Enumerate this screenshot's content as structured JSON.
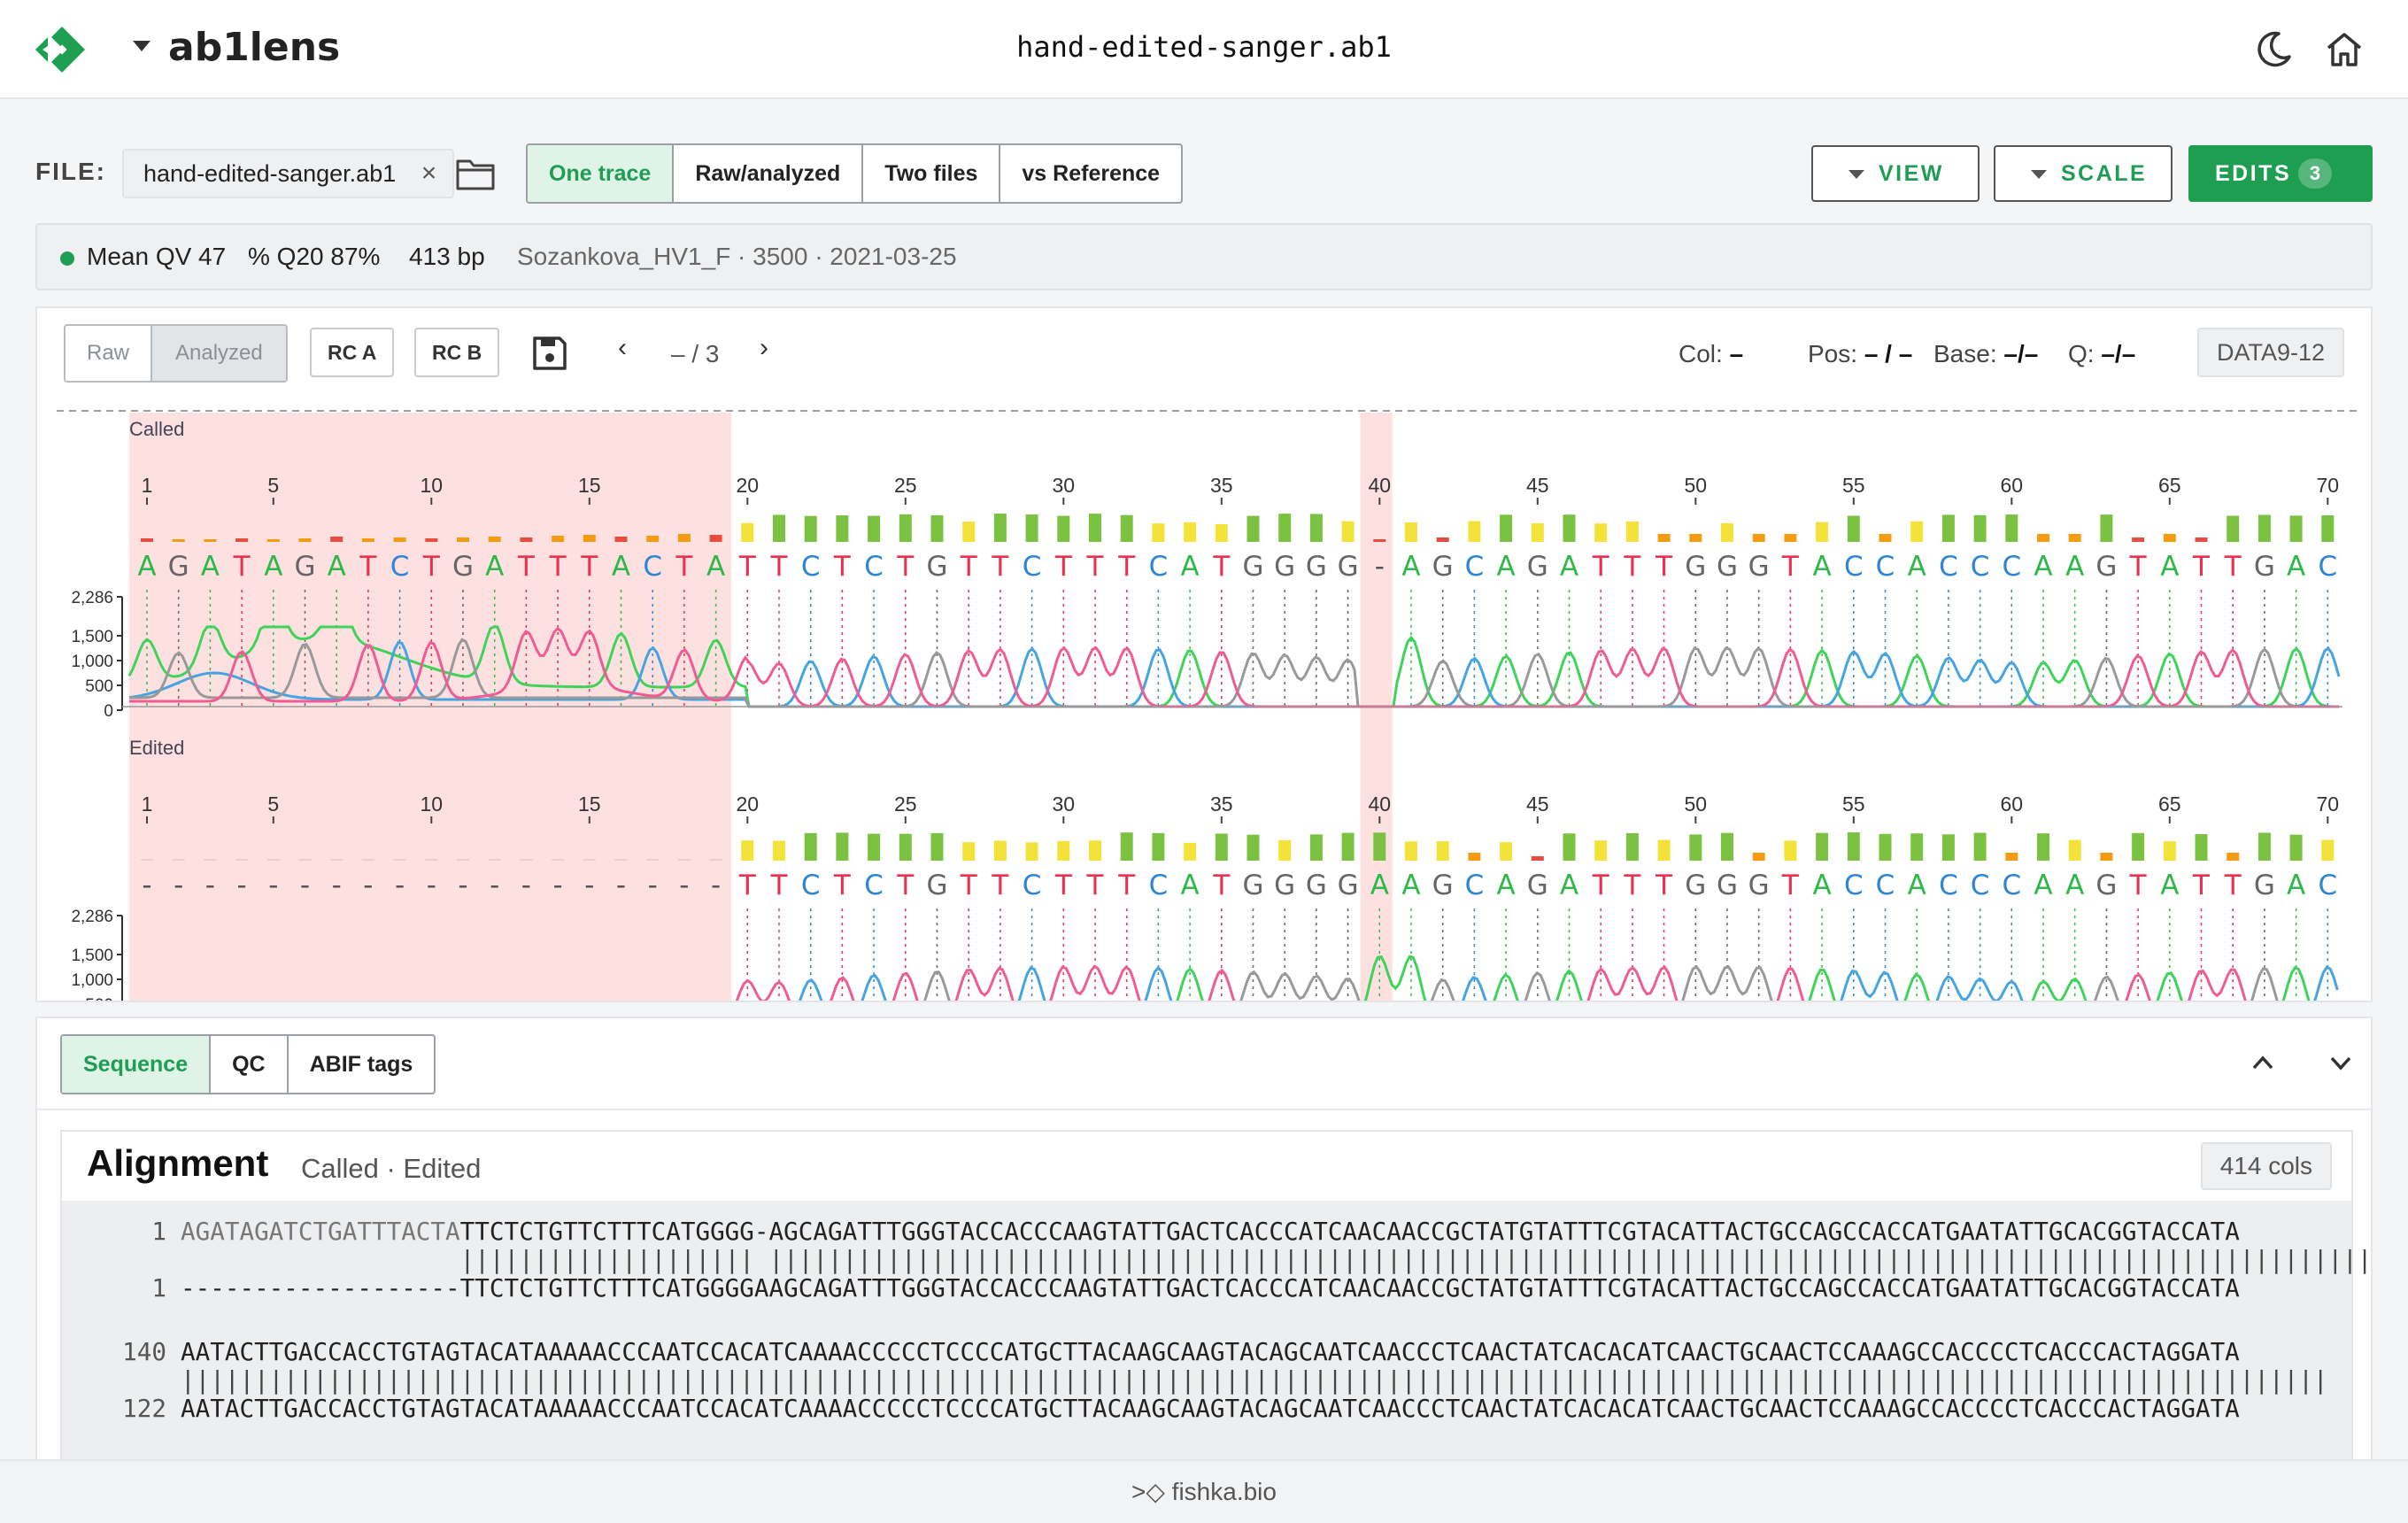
{
  "header": {
    "app_name": "ab1lens",
    "file_title": "hand-edited-sanger.ab1",
    "brand_color": "#1e9e50"
  },
  "toolbar": {
    "file_label": "FILE:",
    "file_name": "hand-edited-sanger.ab1",
    "close_glyph": "×",
    "modes": [
      "One trace",
      "Raw/analyzed",
      "Two files",
      "vs Reference"
    ],
    "active_mode": "One trace",
    "view_label": "VIEW",
    "scale_label": "SCALE",
    "edits_label": "EDITS",
    "edits_count": "3"
  },
  "stats": {
    "mean_qv": "Mean QV 47",
    "q20": "% Q20 87%",
    "length": "413 bp",
    "meta": "Sozankova_HV1_F · 3500 · 2021-03-25"
  },
  "chromatogram": {
    "raw_label": "Raw",
    "analyzed_label": "Analyzed",
    "rc_a": "RC A",
    "rc_b": "RC B",
    "prev": "‹",
    "next": "›",
    "pager": "– / 3",
    "col_label": "Col:",
    "col_value": "–",
    "pos_label": "Pos:",
    "pos_value": "– / –",
    "base_label": "Base:",
    "base_value": "–/–",
    "q_label": "Q:",
    "q_value": "–/–",
    "channel": "DATA9-12",
    "tracks": [
      {
        "label": "Called",
        "sequence": "AGATAGATCTGATTTACTATTCTCTGTTCTTTCATGGGG-AGCAGATTTGGGTACCACCCAAGTATTGAC"
      },
      {
        "label": "Edited",
        "sequence": "-------------------TTCTCTGTTCTTTCATGGGGAAGCAGATTTGGGTACCACCCAAGTATTGAC"
      }
    ],
    "position_ticks": [
      1,
      5,
      10,
      15,
      20,
      25,
      30,
      35,
      40,
      45,
      50,
      55,
      60,
      65,
      70
    ],
    "y_ticks": [
      "2,286",
      "1,500",
      "1,000",
      "500",
      "0"
    ],
    "y_max": 2286,
    "base_colors": {
      "A": "#2fb84a",
      "C": "#2e86d1",
      "G": "#666666",
      "T": "#e8304f",
      "-": "#555555"
    },
    "trace_colors": {
      "A": "#3fd35a",
      "C": "#46a4e0",
      "G": "#999999",
      "T": "#ee5c93"
    },
    "qv_colors": {
      "high": "#7cc242",
      "mid": "#f2e23a",
      "low": "#f39c12",
      "bad": "#e74c3c"
    },
    "highlight_color": "#fde1e1"
  },
  "bottom": {
    "tabs": [
      "Sequence",
      "QC",
      "ABIF tags"
    ],
    "active_tab": "Sequence",
    "alignment_title": "Alignment",
    "alignment_subtitle": "Called · Edited",
    "cols_badge": "414 cols",
    "blocks": [
      {
        "top_num": "1",
        "top": "AGATAGATCTGATTTACTATTCTCTGTTCTTTCATGGGG-AGCAGATTTGGGTACCACCCAAGTATTGACTCACCCATCAACAACCGCTATGTATTTCGTACATTACTGCCAGCCACCATGAATATTGCACGGTACCATA",
        "match": "                   |||||||||||||||||||| ||||||||||||||||||||||||||||||||||||||||||||||||||||||||||||||||||||||||||||||||||||||||||||||||||||||||||||||||",
        "bottom_num": "1",
        "bottom": "-------------------TTCTCTGTTCTTTCATGGGGAAGCAGATTTGGGTACCACCCAAGTATTGACTCACCCATCAACAACCGCTATGTATTTCGTACATTACTGCCAGCCACCATGAATATTGCACGGTACCATA"
      },
      {
        "top_num": "140",
        "top": "AATACTTGACCACCTGTAGTACATAAAAACCCAATCCACATCAAAACCCCCTCCCCATGCTTACAAGCAAGTACAGCAATCAACCCTCAACTATCACACATCAACTGCAACTCCAAAGCCACCCCTCACCCACTAGGATA",
        "match": "||||||||||||||||||||||||||||||||||||||||||||||||||||||||||||||||||||||||||||||||||||||||||||||||||||||||||||||||||||||||||||||||||||||||||||||||||",
        "bottom_num": "122",
        "bottom": "AATACTTGACCACCTGTAGTACATAAAAACCCAATCCACATCAAAACCCCCTCCCCATGCTTACAAGCAAGTACAGCAATCAACCCTCAACTATCACACATCAACTGCAACTCCAAAGCCACCCCTCACCCACTAGGATA"
      }
    ]
  },
  "footer": {
    "text": ">◇ fishka.bio"
  }
}
